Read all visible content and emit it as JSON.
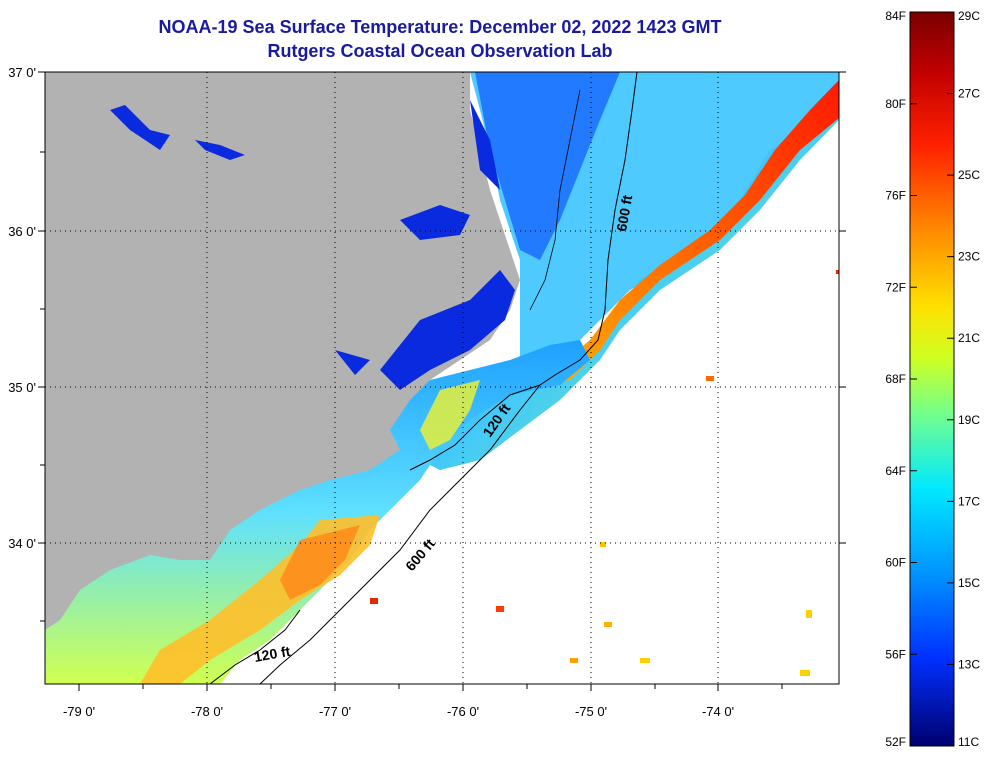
{
  "header": {
    "title": "NOAA-19 Sea Surface Temperature:  December 02, 2022 1423 GMT",
    "subtitle": "Rutgers Coastal Ocean Observation Lab"
  },
  "map": {
    "lat_labels": [
      "37 0'",
      "36 0'",
      "35 0'",
      "34 0'"
    ],
    "lon_labels": [
      "-79 0'",
      "-78 0'",
      "-77 0'",
      "-76 0'",
      "-75 0'",
      "-74 0'"
    ],
    "contours": [
      "600 ft",
      "120 ft",
      "600 ft",
      "120 ft"
    ],
    "colors": {
      "land": "#b2b2b2",
      "cloud": "#ffffff",
      "frame": "#000000"
    }
  },
  "colorbar": {
    "fahrenheit_labels": [
      "84F",
      "80F",
      "76F",
      "72F",
      "68F",
      "64F",
      "60F",
      "56F",
      "52F"
    ],
    "celsius_labels": [
      "29C",
      "27C",
      "25C",
      "23C",
      "21C",
      "19C",
      "17C",
      "15C",
      "13C",
      "11C"
    ],
    "colors": [
      "#7a0000",
      "#d40000",
      "#ff3a00",
      "#ff9000",
      "#ffd800",
      "#c8ff2a",
      "#60ffa0",
      "#00e0ff",
      "#0090ff",
      "#0030ff",
      "#00008a"
    ]
  }
}
